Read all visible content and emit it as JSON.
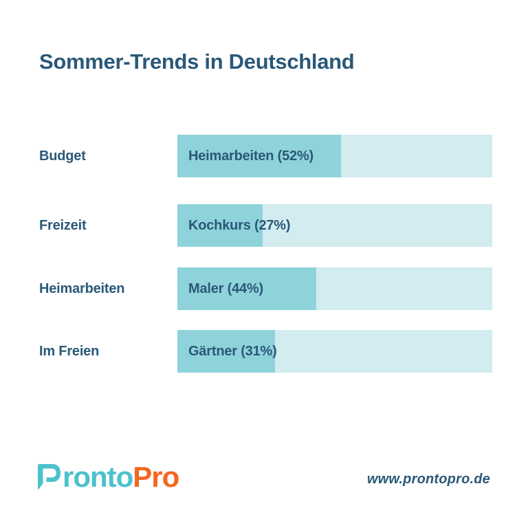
{
  "chart_data": {
    "type": "bar",
    "orientation": "horizontal",
    "title": "Sommer-Trends in Deutschland",
    "categories": [
      "Budget",
      "Freizeit",
      "Heimarbeiten",
      "Im Freien"
    ],
    "bars": [
      {
        "category": "Budget",
        "top_service": "Heimarbeiten",
        "value_pct": 52,
        "bar_label": "Heimarbeiten (52%)"
      },
      {
        "category": "Freizeit",
        "top_service": "Kochkurs",
        "value_pct": 27,
        "bar_label": "Kochkurs (27%)"
      },
      {
        "category": "Heimarbeiten",
        "top_service": "Maler",
        "value_pct": 44,
        "bar_label": "Maler (44%)"
      },
      {
        "category": "Im Freien",
        "top_service": "Gärtner",
        "value_pct": 31,
        "bar_label": "Gärtner (31%)"
      }
    ],
    "xlim": [
      0,
      100
    ],
    "grid": false,
    "legend": "none",
    "value_labels_position": "inside-bar-left"
  },
  "footer": {
    "brand": {
      "mark": "speech-bubble-p-icon",
      "teal_part": "ronto",
      "orange_part": "Pro"
    },
    "website": "www.prontopro.de"
  },
  "colors": {
    "navy_text": "#2a5878",
    "bar_fill": "#8ed3da",
    "bar_track": "#d2ecf0",
    "brand_teal": "#4bc1cc",
    "brand_orange": "#f4661f",
    "background": "#ffffff"
  }
}
